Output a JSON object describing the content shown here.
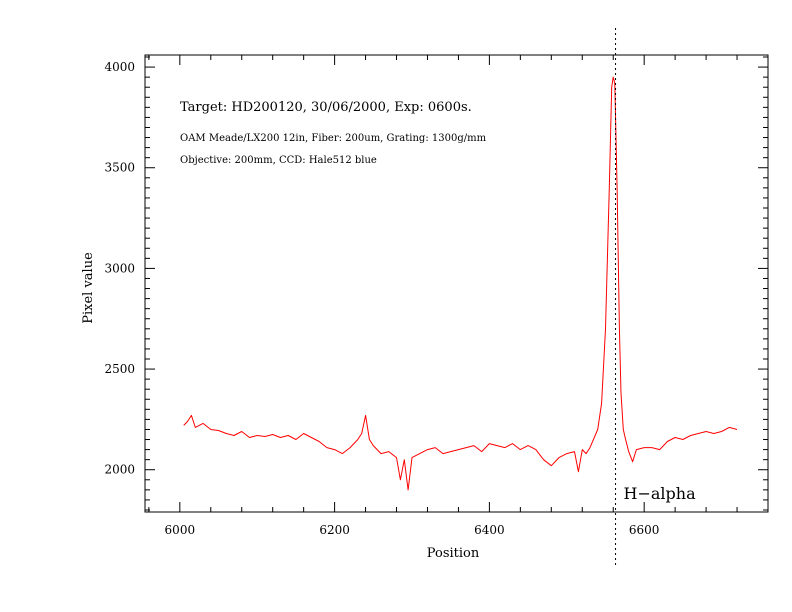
{
  "chart_data": {
    "type": "line",
    "xlabel": "Position",
    "ylabel": "Pixel value",
    "xlim": [
      5955,
      6760
    ],
    "ylim": [
      1790,
      4060
    ],
    "x_ticks": [
      6000,
      6200,
      6400,
      6600
    ],
    "y_ticks": [
      2000,
      2500,
      3000,
      3500,
      4000
    ],
    "x_tick_labels": [
      "6000",
      "6200",
      "6400",
      "6600"
    ],
    "y_tick_labels": [
      "2000",
      "2500",
      "3000",
      "3500",
      "4000"
    ],
    "annotations": {
      "line1": "Target: HD200120, 30/06/2000, Exp: 0600s.",
      "line2": "OAM Meade/LX200 12in, Fiber: 200um, Grating: 1300g/mm",
      "line3": "Objective: 200mm, CCD: Hale512 blue",
      "marker_label": "H−alpha",
      "marker_x": 6563
    },
    "grid": false,
    "legend": "none",
    "line_color": "#ff0000",
    "series": [
      {
        "x": [
          6005,
          6010,
          6015,
          6020,
          6030,
          6040,
          6050,
          6060,
          6070,
          6080,
          6090,
          6100,
          6110,
          6120,
          6130,
          6140,
          6150,
          6160,
          6170,
          6180,
          6190,
          6200,
          6210,
          6220,
          6230,
          6235,
          6240,
          6245,
          6250,
          6260,
          6270,
          6280,
          6285,
          6290,
          6295,
          6300,
          6310,
          6320,
          6330,
          6340,
          6350,
          6360,
          6370,
          6380,
          6390,
          6400,
          6410,
          6420,
          6430,
          6440,
          6450,
          6460,
          6470,
          6480,
          6490,
          6500,
          6510,
          6515,
          6520,
          6525,
          6530,
          6540,
          6545,
          6550,
          6555,
          6558,
          6560,
          6562,
          6565,
          6568,
          6570,
          6573,
          6576,
          6580,
          6585,
          6590,
          6600,
          6610,
          6620,
          6630,
          6640,
          6650,
          6660,
          6670,
          6680,
          6690,
          6700,
          6710,
          6720
        ],
        "values": [
          2220,
          2240,
          2270,
          2210,
          2230,
          2200,
          2195,
          2180,
          2170,
          2190,
          2160,
          2170,
          2165,
          2175,
          2160,
          2170,
          2150,
          2180,
          2160,
          2140,
          2110,
          2100,
          2080,
          2110,
          2150,
          2180,
          2270,
          2150,
          2120,
          2080,
          2090,
          2060,
          1950,
          2050,
          1900,
          2060,
          2080,
          2100,
          2110,
          2080,
          2090,
          2100,
          2110,
          2120,
          2090,
          2130,
          2120,
          2110,
          2130,
          2100,
          2120,
          2100,
          2050,
          2020,
          2060,
          2080,
          2090,
          1990,
          2100,
          2080,
          2110,
          2200,
          2330,
          2700,
          3400,
          3900,
          3950,
          3920,
          3400,
          2700,
          2380,
          2200,
          2150,
          2090,
          2040,
          2100,
          2110,
          2110,
          2100,
          2140,
          2160,
          2150,
          2170,
          2180,
          2190,
          2180,
          2190,
          2210,
          2200
        ]
      }
    ]
  }
}
